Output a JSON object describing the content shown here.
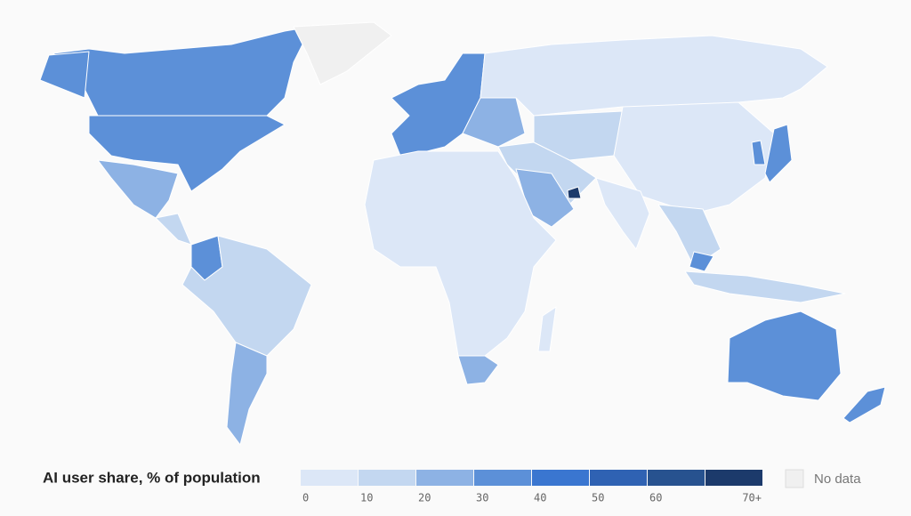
{
  "map": {
    "title": "AI user share, % of population",
    "scale": {
      "ticks": [
        0,
        10,
        20,
        30,
        40,
        50,
        60,
        {
          "value": 70,
          "label": "70+"
        }
      ],
      "colors": [
        "#dce7f7",
        "#c3d7f0",
        "#8db2e4",
        "#5c90d8",
        "#3a76d0",
        "#2f62b3",
        "#27528f",
        "#1c3a6b"
      ]
    },
    "no_data": {
      "label": "No data",
      "color": "#f0f0f0"
    },
    "regions": [
      33,
      33,
      33,
      null,
      22,
      15,
      30,
      12,
      22,
      38,
      28,
      5,
      10,
      8,
      35,
      30,
      12,
      25,
      70,
      5,
      20,
      8,
      15,
      12,
      30,
      35,
      35,
      5
    ]
  }
}
